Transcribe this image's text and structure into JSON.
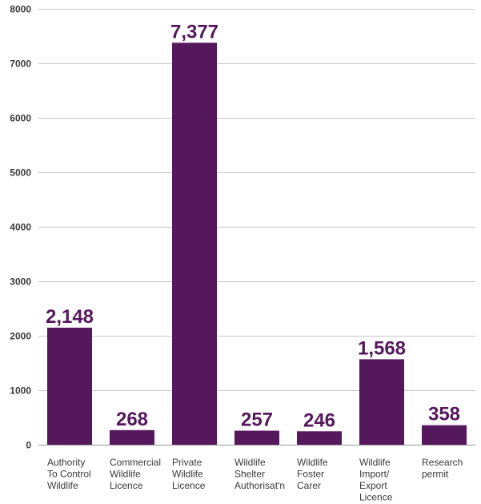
{
  "chart_data": {
    "type": "bar",
    "categories": [
      "Authority To Control Wildlife",
      "Commercial Wildlife Licence",
      "Private Wildlife Licence",
      "Wildlife Shelter Authorisat'n",
      "Wildlife Foster Carer",
      "Wildlife Import/ Export Licence",
      "Research permit"
    ],
    "category_lines": [
      [
        "Authority",
        "To Control",
        "Wildlife"
      ],
      [
        "Commercial",
        "Wildlife",
        "Licence"
      ],
      [
        "Private",
        "Wildlife",
        "Licence"
      ],
      [
        "Wildlife",
        "Shelter",
        "Authorisat'n"
      ],
      [
        "Wildlife",
        "Foster",
        "Carer"
      ],
      [
        "Wildlife",
        "Import/",
        "Export",
        "Licence"
      ],
      [
        "Research",
        "permit"
      ]
    ],
    "values": [
      2148,
      268,
      7377,
      257,
      246,
      1568,
      358
    ],
    "value_labels": [
      "2,148",
      "268",
      "7,377",
      "257",
      "246",
      "1,568",
      "358"
    ],
    "title": "",
    "xlabel": "",
    "ylabel": "",
    "ylim": [
      0,
      8000
    ],
    "yticks": [
      0,
      1000,
      2000,
      3000,
      4000,
      5000,
      6000,
      7000,
      8000
    ],
    "ytick_labels": [
      "0",
      "1000",
      "2000",
      "3000",
      "4000",
      "5000",
      "6000",
      "7000",
      "8000"
    ],
    "grid": true,
    "legend": "none",
    "colors": {
      "bar": "#55185d",
      "value_label": "#55185d",
      "grid": "#c8c8c8",
      "tick_text": "#3a3a3a"
    }
  }
}
